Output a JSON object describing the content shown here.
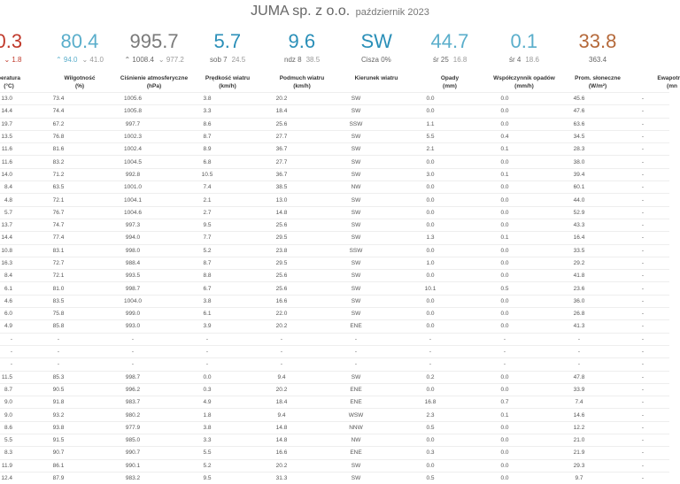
{
  "header": {
    "title": "JUMA sp. z o.o.",
    "subtitle": "październik 2023"
  },
  "stats": [
    {
      "value": "0.3",
      "color": "#c0392b",
      "sub1": "3",
      "sub2": "1.8",
      "sub1_prefix": "",
      "sub2_prefix": "⌄"
    },
    {
      "value": "80.4",
      "color": "#5aaecb",
      "sub1": "94.0",
      "sub2": "41.0",
      "sub1_prefix": "⌃",
      "sub2_prefix": "⌄"
    },
    {
      "value": "995.7",
      "color": "#7a7a7a",
      "sub1": "1008.4",
      "sub2": "977.2",
      "sub1_prefix": "⌃",
      "sub2_prefix": "⌄"
    },
    {
      "value": "5.7",
      "color": "#2a8fb8",
      "sub1": "sob 7",
      "sub2": "24.5",
      "sub1_prefix": "",
      "sub2_prefix": ""
    },
    {
      "value": "9.6",
      "color": "#2a8fb8",
      "sub1": "ndz 8",
      "sub2": "38.5",
      "sub1_prefix": "",
      "sub2_prefix": ""
    },
    {
      "value": "SW",
      "color": "#2a8fb8",
      "sub1": "Cisza 0%",
      "sub2": "",
      "sub1_prefix": "",
      "sub2_prefix": ""
    },
    {
      "value": "44.7",
      "color": "#5aaecb",
      "sub1": "śr 25",
      "sub2": "16.8",
      "sub1_prefix": "",
      "sub2_prefix": ""
    },
    {
      "value": "0.1",
      "color": "#5aaecb",
      "sub1": "śr 4",
      "sub2": "18.6",
      "sub1_prefix": "",
      "sub2_prefix": ""
    },
    {
      "value": "33.8",
      "color": "#b5693a",
      "sub1": "363.4",
      "sub2": "",
      "sub1_prefix": "",
      "sub2_prefix": ""
    }
  ],
  "columns": [
    "peratura\n(°C)",
    "Wilgotność\n(%)",
    "Ciśnienie atmosferyczne\n(hPa)",
    "Prędkość wiatru\n(km/h)",
    "Podmuch wiatru\n(km/h)",
    "Kierunek wiatru",
    "Opady\n(mm)",
    "Współczynnik opadów\n(mm/h)",
    "Prom. słoneczne\n(W/m²)",
    "Ewapotran\n(mn"
  ],
  "rows": [
    [
      "13.0",
      "73.4",
      "1005.6",
      "3.8",
      "20.2",
      "SW",
      "0.0",
      "0.0",
      "45.6",
      "-"
    ],
    [
      "14.4",
      "74.4",
      "1005.8",
      "3.3",
      "18.4",
      "SW",
      "0.0",
      "0.0",
      "47.6",
      "-"
    ],
    [
      "19.7",
      "67.2",
      "997.7",
      "8.6",
      "25.6",
      "SSW",
      "1.1",
      "0.0",
      "63.6",
      "-"
    ],
    [
      "13.5",
      "76.8",
      "1002.3",
      "8.7",
      "27.7",
      "SW",
      "5.5",
      "0.4",
      "34.5",
      "-"
    ],
    [
      "11.6",
      "81.6",
      "1002.4",
      "8.9",
      "36.7",
      "SW",
      "2.1",
      "0.1",
      "28.3",
      "-"
    ],
    [
      "11.6",
      "83.2",
      "1004.5",
      "6.8",
      "27.7",
      "SW",
      "0.0",
      "0.0",
      "38.0",
      "-"
    ],
    [
      "14.0",
      "71.2",
      "992.8",
      "10.5",
      "36.7",
      "SW",
      "3.0",
      "0.1",
      "39.4",
      "-"
    ],
    [
      "8.4",
      "63.5",
      "1001.0",
      "7.4",
      "38.5",
      "NW",
      "0.0",
      "0.0",
      "60.1",
      "-"
    ],
    [
      "4.8",
      "72.1",
      "1004.1",
      "2.1",
      "13.0",
      "SW",
      "0.0",
      "0.0",
      "44.0",
      "-"
    ],
    [
      "5.7",
      "76.7",
      "1004.6",
      "2.7",
      "14.8",
      "SW",
      "0.0",
      "0.0",
      "52.9",
      "-"
    ],
    [
      "13.7",
      "74.7",
      "997.3",
      "9.5",
      "25.6",
      "SW",
      "0.0",
      "0.0",
      "43.3",
      "-"
    ],
    [
      "14.4",
      "77.4",
      "994.0",
      "7.7",
      "29.5",
      "SW",
      "1.3",
      "0.1",
      "16.4",
      "-"
    ],
    [
      "10.8",
      "83.1",
      "998.0",
      "5.2",
      "23.8",
      "SSW",
      "0.0",
      "0.0",
      "33.5",
      "-"
    ],
    [
      "16.3",
      "72.7",
      "988.4",
      "8.7",
      "29.5",
      "SW",
      "1.0",
      "0.0",
      "29.2",
      "-"
    ],
    [
      "8.4",
      "72.1",
      "993.5",
      "8.8",
      "25.6",
      "SW",
      "0.0",
      "0.0",
      "41.8",
      "-"
    ],
    [
      "6.1",
      "81.0",
      "998.7",
      "6.7",
      "25.6",
      "SW",
      "10.1",
      "0.5",
      "23.6",
      "-"
    ],
    [
      "4.6",
      "83.5",
      "1004.0",
      "3.8",
      "16.6",
      "SW",
      "0.0",
      "0.0",
      "36.0",
      "-"
    ],
    [
      "6.0",
      "75.8",
      "999.0",
      "6.1",
      "22.0",
      "SW",
      "0.0",
      "0.0",
      "26.8",
      "-"
    ],
    [
      "4.9",
      "85.8",
      "993.0",
      "3.9",
      "20.2",
      "ENE",
      "0.0",
      "0.0",
      "41.3",
      "-"
    ],
    [
      "-",
      "-",
      "-",
      "-",
      "-",
      "-",
      "-",
      "-",
      "-",
      "-"
    ],
    [
      "-",
      "-",
      "-",
      "-",
      "-",
      "-",
      "-",
      "-",
      "-",
      "-"
    ],
    [
      "-",
      "-",
      "-",
      "-",
      "-",
      "-",
      "-",
      "-",
      "-",
      "-"
    ],
    [
      "11.5",
      "85.3",
      "998.7",
      "0.0",
      "9.4",
      "SW",
      "0.2",
      "0.0",
      "47.8",
      "-"
    ],
    [
      "8.7",
      "90.5",
      "996.2",
      "0.3",
      "20.2",
      "ENE",
      "0.0",
      "0.0",
      "33.9",
      "-"
    ],
    [
      "9.0",
      "91.8",
      "983.7",
      "4.9",
      "18.4",
      "ENE",
      "16.8",
      "0.7",
      "7.4",
      "-"
    ],
    [
      "9.0",
      "93.2",
      "980.2",
      "1.8",
      "9.4",
      "WSW",
      "2.3",
      "0.1",
      "14.6",
      "-"
    ],
    [
      "8.6",
      "93.8",
      "977.9",
      "3.8",
      "14.8",
      "NNW",
      "0.5",
      "0.0",
      "12.2",
      "-"
    ],
    [
      "5.5",
      "91.5",
      "985.0",
      "3.3",
      "14.8",
      "NW",
      "0.0",
      "0.0",
      "21.0",
      "-"
    ],
    [
      "8.3",
      "90.7",
      "990.7",
      "5.5",
      "16.6",
      "ENE",
      "0.3",
      "0.0",
      "21.9",
      "-"
    ],
    [
      "11.9",
      "86.1",
      "990.1",
      "5.2",
      "20.2",
      "SW",
      "0.0",
      "0.0",
      "29.3",
      "-"
    ],
    [
      "12.4",
      "87.9",
      "983.2",
      "9.5",
      "31.3",
      "SW",
      "0.5",
      "0.0",
      "9.7",
      "-"
    ]
  ]
}
